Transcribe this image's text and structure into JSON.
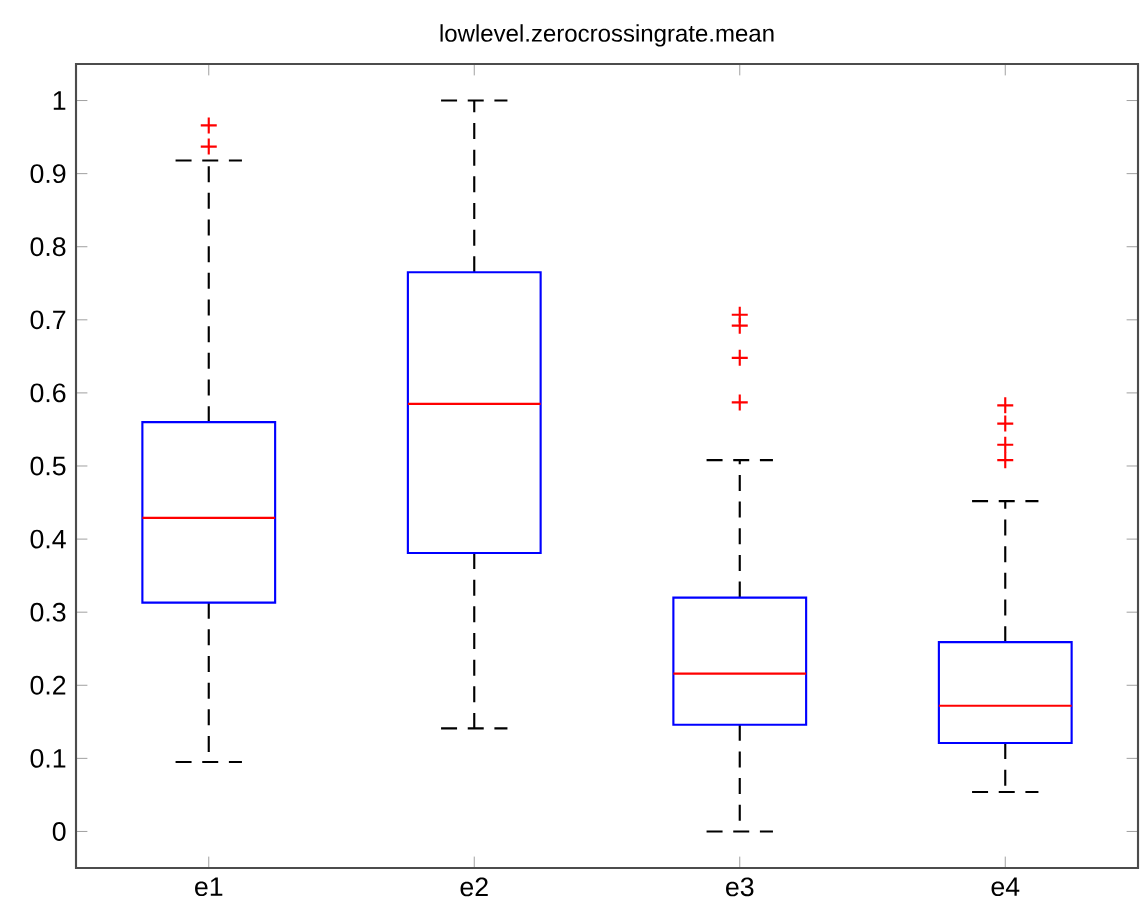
{
  "chart_data": {
    "type": "box",
    "title": "lowlevel.zerocrossingrate.mean",
    "categories": [
      "e1",
      "e2",
      "e3",
      "e4"
    ],
    "series": [
      {
        "color": "#0000ff",
        "boxes": [
          {
            "low": 0.095,
            "q1": 0.313,
            "median": 0.429,
            "q3": 0.56,
            "high": 0.918,
            "outliers": [
              0.937,
              0.966
            ]
          },
          {
            "low": 0.141,
            "q1": 0.381,
            "median": 0.585,
            "q3": 0.765,
            "high": 1.0
          },
          {
            "low": 0.0,
            "q1": 0.146,
            "median": 0.216,
            "q3": 0.32,
            "high": 0.508,
            "outliers": [
              0.587,
              0.648,
              0.692,
              0.707
            ]
          },
          {
            "low": 0.054,
            "q1": 0.121,
            "median": 0.172,
            "q3": 0.259,
            "high": 0.452,
            "outliers": [
              0.508,
              0.529,
              0.558,
              0.583
            ]
          }
        ]
      }
    ],
    "ylim": [
      -0.05,
      1.05
    ],
    "yticks": [
      0,
      0.1,
      0.2,
      0.3,
      0.4,
      0.5,
      0.6,
      0.7,
      0.8,
      0.9,
      1
    ],
    "marker": "cross",
    "grid": false
  }
}
